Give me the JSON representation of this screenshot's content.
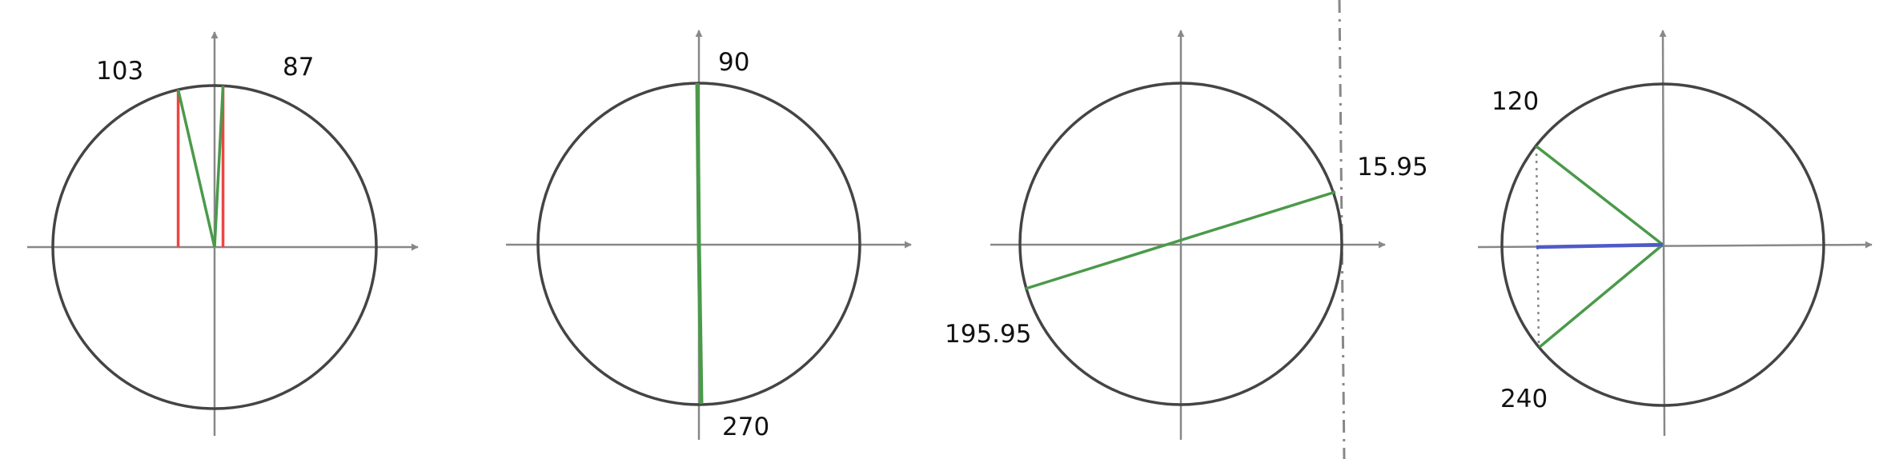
{
  "colors": {
    "axis": "#888888",
    "circle": "#444444",
    "radius": "#4a9a4a",
    "projection": "#ee4444",
    "cosine": "#4f5ac9",
    "guide": "#888888"
  },
  "diagrams": [
    {
      "id": "cos-equal-pair",
      "angles_deg": [
        103,
        87
      ],
      "labels": [
        "103",
        "87"
      ],
      "shows": [
        "radius-lines",
        "vertical-projections"
      ]
    },
    {
      "id": "vertical-diameter",
      "angles_deg": [
        90,
        270
      ],
      "labels": [
        "90",
        "270"
      ],
      "shows": [
        "radius-lines"
      ]
    },
    {
      "id": "tangent-line",
      "angles_deg": [
        15.95,
        195.95
      ],
      "labels": [
        "15.95",
        "195.95"
      ],
      "shows": [
        "diameter-line",
        "vertical-dash-dot-line"
      ]
    },
    {
      "id": "cos-equal-sym",
      "angles_deg": [
        120,
        240
      ],
      "labels": [
        "120",
        "240"
      ],
      "shows": [
        "radius-lines",
        "dotted-chord",
        "cosine-segment"
      ]
    }
  ]
}
